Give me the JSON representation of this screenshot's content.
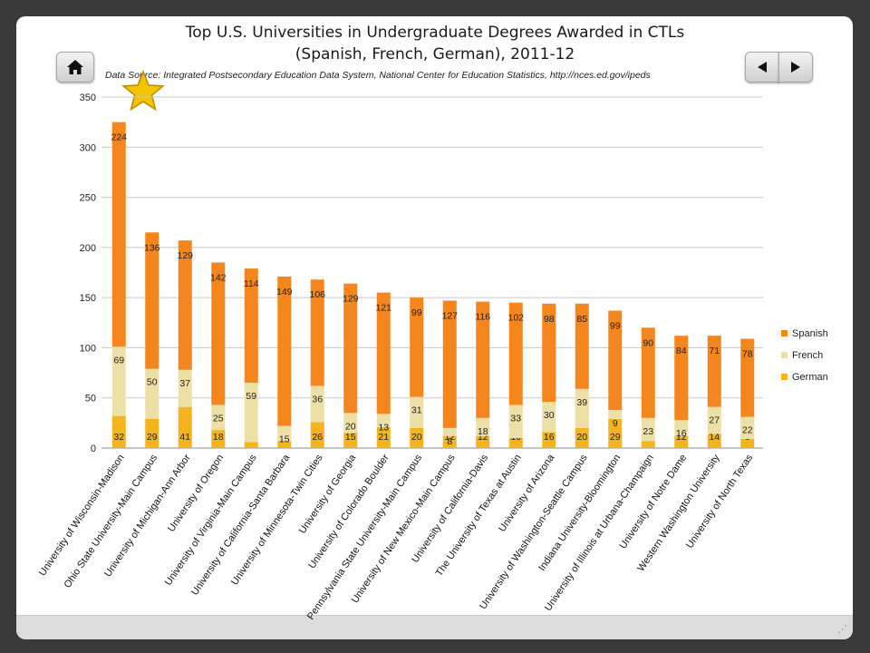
{
  "title_line1": "Top U.S. Universities in Undergraduate Degrees Awarded in CTLs",
  "title_line2": "(Spanish, French, German), 2011-12",
  "source": "Data Source: Integrated Postsecondary Education Data System, National Center for Education Statistics, http://nces.ed.gov/ipeds",
  "nav": {
    "home_icon": "home-icon",
    "prev_icon": "triangle-left-icon",
    "next_icon": "triangle-right-icon"
  },
  "decoration": {
    "icon": "star-icon",
    "color": "#f5c400"
  },
  "colors": {
    "German": "#f5b41e",
    "French": "#ede0a6",
    "Spanish": "#f5861e"
  },
  "chart_data": {
    "type": "bar",
    "stacked": true,
    "categories": [
      "University of Wisconsin-Madison",
      "Ohio State University-Main Campus",
      "University of Michigan-Ann Arbor",
      "University of Oregon",
      "University of Virginia-Main Campus",
      "University of California-Santa Barbara",
      "University of Minnesota-Twin Cities",
      "University of Georgia",
      "University of Colorado Boulder",
      "Pennsylvania State University-Main Campus",
      "University of New Mexico-Main Campus",
      "University of California-Davis",
      "The University of Texas at Austin",
      "University of Arizona",
      "University of Washington-Seattle Campus",
      "Indiana University-Bloomington",
      "University of Illinois at Urbana-Champaign",
      "University of Notre Dame",
      "Western Washington University",
      "University of North Texas"
    ],
    "series": [
      {
        "name": "German",
        "values": [
          32,
          29,
          41,
          18,
          6,
          7,
          26,
          15,
          21,
          20,
          12,
          12,
          10,
          16,
          20,
          29,
          7,
          12,
          14,
          9
        ]
      },
      {
        "name": "French",
        "values": [
          69,
          50,
          37,
          25,
          59,
          15,
          36,
          20,
          13,
          31,
          8,
          18,
          33,
          30,
          39,
          9,
          23,
          16,
          27,
          22
        ]
      },
      {
        "name": "Spanish",
        "values": [
          224,
          136,
          129,
          142,
          114,
          149,
          106,
          129,
          121,
          99,
          127,
          116,
          102,
          98,
          85,
          99,
          90,
          84,
          71,
          78
        ]
      }
    ],
    "legend_order": [
      "Spanish",
      "French",
      "German"
    ],
    "legend_position": "right",
    "ylim": [
      0,
      350
    ],
    "yticks": [
      0,
      50,
      100,
      150,
      200,
      250,
      300,
      350
    ],
    "grid": true
  }
}
